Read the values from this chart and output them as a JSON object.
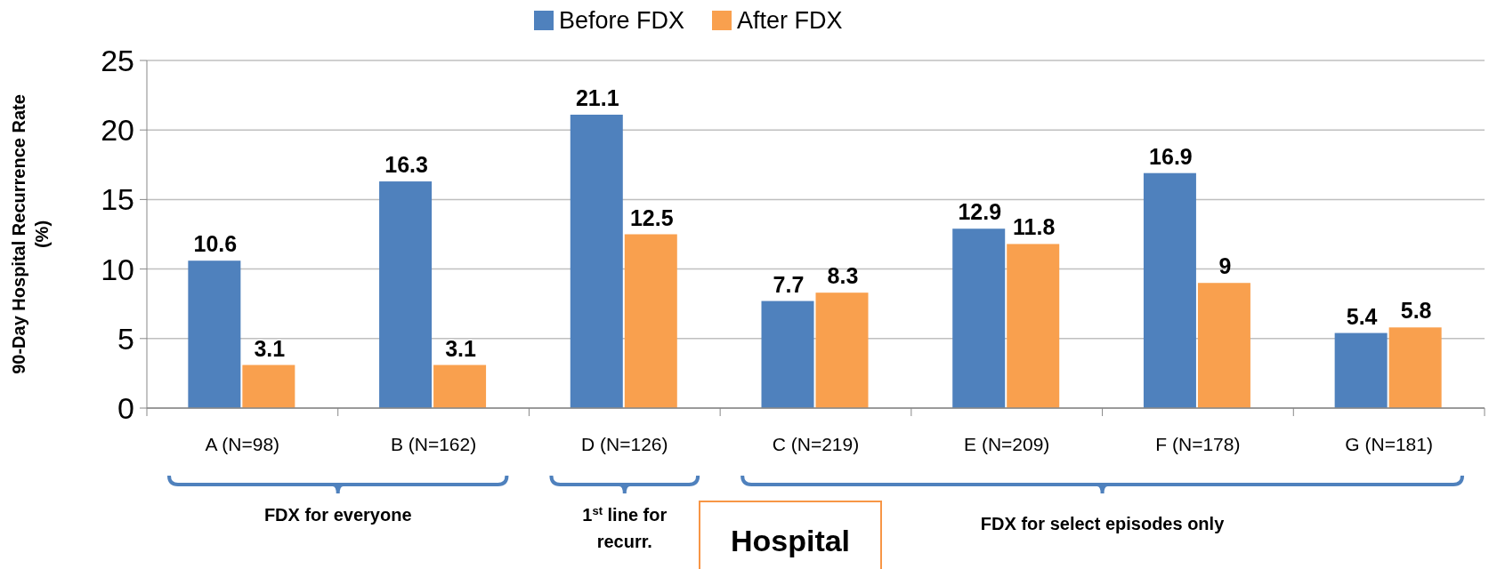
{
  "chart_data": {
    "type": "bar",
    "ylabel": "90-Day Hospital Recurrence Rate (%)",
    "categories": [
      "A (N=98)",
      "B (N=162)",
      "D (N=126)",
      "C (N=219)",
      "E (N=209)",
      "F (N=178)",
      "G (N=181)"
    ],
    "series": [
      {
        "name": "Before FDX",
        "color": "#4f81bd",
        "values": [
          10.6,
          16.3,
          21.1,
          7.7,
          12.9,
          16.9,
          5.4
        ]
      },
      {
        "name": "After FDX",
        "color": "#f9a04e",
        "values": [
          3.1,
          3.1,
          12.5,
          8.3,
          11.8,
          9,
          5.8
        ]
      }
    ],
    "ylim": [
      0,
      25
    ],
    "yticks": [
      0,
      5,
      10,
      15,
      20,
      25
    ],
    "grid": "y",
    "legend": "top",
    "data_labels": true,
    "annotations": [
      "FDX for everyone",
      "1$^{st}$ line for recurr.",
      "Hospital",
      "FDX for select episodes only"
    ]
  }
}
